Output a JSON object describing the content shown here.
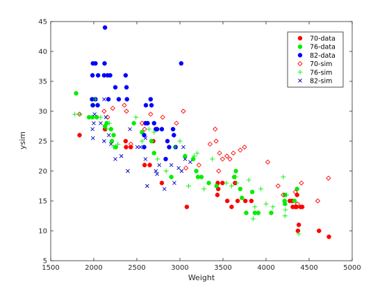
{
  "chart_data": {
    "type": "scatter",
    "xlabel": "Weight",
    "ylabel": "ysim",
    "xlim": [
      1500,
      5000
    ],
    "ylim": [
      5,
      45
    ],
    "xticks": [
      1500,
      2000,
      2500,
      3000,
      3500,
      4000,
      4500,
      5000
    ],
    "yticks": [
      5,
      10,
      15,
      20,
      25,
      30,
      35,
      40,
      45
    ],
    "grid": false,
    "legend_position": "top-right",
    "series": [
      {
        "name": "70-data",
        "marker": "dot",
        "color": "#ff0000",
        "points": [
          [
            1835,
            26
          ],
          [
            2130,
            27
          ],
          [
            2370,
            25
          ],
          [
            2375,
            24
          ],
          [
            2430,
            24
          ],
          [
            2590,
            21
          ],
          [
            2650,
            21
          ],
          [
            2690,
            25
          ],
          [
            2790,
            18
          ],
          [
            3080,
            14
          ],
          [
            3440,
            18
          ],
          [
            3445,
            17
          ],
          [
            3435,
            16
          ],
          [
            3495,
            18
          ],
          [
            3550,
            15
          ],
          [
            3600,
            14
          ],
          [
            3640,
            18
          ],
          [
            3670,
            15
          ],
          [
            3760,
            15
          ],
          [
            3830,
            15
          ],
          [
            4275,
            15
          ],
          [
            4310,
            14
          ],
          [
            4340,
            14
          ],
          [
            4354,
            14
          ],
          [
            4360,
            16
          ],
          [
            4380,
            11
          ],
          [
            4370,
            10
          ],
          [
            4400,
            14
          ],
          [
            4420,
            14
          ],
          [
            4615,
            10
          ],
          [
            4730,
            9
          ],
          [
            4305,
            15
          ]
        ]
      },
      {
        "name": "76-data",
        "marker": "dot",
        "color": "#00ee00",
        "points": [
          [
            1795,
            33
          ],
          [
            1945,
            29
          ],
          [
            1985,
            29
          ],
          [
            2035,
            29
          ],
          [
            2130,
            27.5
          ],
          [
            2150,
            28
          ],
          [
            2200,
            27
          ],
          [
            2230,
            26
          ],
          [
            2210,
            25
          ],
          [
            2255,
            24
          ],
          [
            2465,
            28
          ],
          [
            2560,
            26.5
          ],
          [
            2670,
            25
          ],
          [
            2700,
            23
          ],
          [
            2900,
            19
          ],
          [
            3060,
            22.5
          ],
          [
            3155,
            22
          ],
          [
            3190,
            20
          ],
          [
            3210,
            19
          ],
          [
            3250,
            19
          ],
          [
            3335,
            18
          ],
          [
            3425,
            17.5
          ],
          [
            3650,
            20
          ],
          [
            3630,
            19
          ],
          [
            3700,
            17
          ],
          [
            3720,
            15.5
          ],
          [
            3770,
            13
          ],
          [
            3840,
            16.5
          ],
          [
            3870,
            13
          ],
          [
            3910,
            13
          ],
          [
            4060,
            13
          ],
          [
            4215,
            15
          ],
          [
            4220,
            16
          ],
          [
            4220,
            14.5
          ],
          [
            4330,
            15
          ],
          [
            4360,
            17
          ],
          [
            1985,
            31
          ]
        ]
      },
      {
        "name": "82-data",
        "marker": "dot",
        "color": "#0000ff",
        "points": [
          [
            1990,
            38
          ],
          [
            2020,
            38
          ],
          [
            2125,
            38
          ],
          [
            2130,
            44
          ],
          [
            1985,
            36
          ],
          [
            2050,
            36
          ],
          [
            2120,
            36
          ],
          [
            2160,
            36
          ],
          [
            2190,
            36
          ],
          [
            2370,
            36
          ],
          [
            2380,
            34
          ],
          [
            2250,
            34
          ],
          [
            2290,
            32
          ],
          [
            2170,
            32
          ],
          [
            2020,
            32
          ],
          [
            1980,
            32
          ],
          [
            1990,
            31
          ],
          [
            2045,
            31
          ],
          [
            2385,
            32
          ],
          [
            2660,
            32
          ],
          [
            2670,
            31
          ],
          [
            2605,
            31
          ],
          [
            2720,
            27
          ],
          [
            2790,
            27
          ],
          [
            2600,
            28
          ],
          [
            2625,
            28
          ],
          [
            2585,
            26
          ],
          [
            2585,
            24
          ],
          [
            2700,
            28
          ],
          [
            2735,
            27
          ],
          [
            2920,
            27
          ],
          [
            2930,
            26
          ],
          [
            2855,
            25
          ],
          [
            2875,
            24
          ],
          [
            2835,
            22
          ],
          [
            2950,
            24
          ],
          [
            3015,
            38
          ]
        ]
      },
      {
        "name": "70-sim",
        "marker": "diamond-open",
        "color": "#ff0000",
        "points": [
          [
            1835,
            29.5
          ],
          [
            2120,
            30
          ],
          [
            2160,
            29
          ],
          [
            2220,
            30.5
          ],
          [
            2355,
            31
          ],
          [
            2380,
            30
          ],
          [
            2430,
            24.5
          ],
          [
            2560,
            28
          ],
          [
            2590,
            27
          ],
          [
            2660,
            29.5
          ],
          [
            2800,
            29
          ],
          [
            2960,
            28
          ],
          [
            3040,
            30
          ],
          [
            3070,
            20.5
          ],
          [
            3220,
            21
          ],
          [
            3350,
            24.5
          ],
          [
            3410,
            27
          ],
          [
            3420,
            25
          ],
          [
            3460,
            23
          ],
          [
            3495,
            22
          ],
          [
            3545,
            22.5
          ],
          [
            3580,
            22
          ],
          [
            3620,
            23
          ],
          [
            3700,
            23.5
          ],
          [
            3750,
            24
          ],
          [
            4020,
            21.5
          ],
          [
            4140,
            17.5
          ],
          [
            4200,
            16
          ],
          [
            4340,
            16.5
          ],
          [
            4365,
            14.5
          ],
          [
            4410,
            18
          ],
          [
            4600,
            15
          ],
          [
            4725,
            18.8
          ],
          [
            3450,
            20
          ]
        ]
      },
      {
        "name": "76-sim",
        "marker": "plus",
        "color": "#00ee00",
        "points": [
          [
            1780,
            29.5
          ],
          [
            2020,
            32
          ],
          [
            2080,
            29
          ],
          [
            2150,
            27
          ],
          [
            2180,
            28
          ],
          [
            2230,
            24
          ],
          [
            2280,
            24.5
          ],
          [
            2490,
            29
          ],
          [
            2560,
            25
          ],
          [
            2640,
            27
          ],
          [
            2700,
            26.5
          ],
          [
            2740,
            22
          ],
          [
            2840,
            20
          ],
          [
            2945,
            24
          ],
          [
            3000,
            25
          ],
          [
            3100,
            17.5
          ],
          [
            3165,
            22.5
          ],
          [
            3200,
            23
          ],
          [
            3280,
            17
          ],
          [
            3375,
            22
          ],
          [
            3540,
            18
          ],
          [
            3600,
            17.5
          ],
          [
            3650,
            19
          ],
          [
            3660,
            18
          ],
          [
            3800,
            18.5
          ],
          [
            3850,
            12
          ],
          [
            3870,
            14
          ],
          [
            3940,
            17
          ],
          [
            4000,
            14.5
          ],
          [
            4080,
            14
          ],
          [
            4200,
            19
          ],
          [
            4220,
            12.5
          ],
          [
            4240,
            16
          ],
          [
            4380,
            9.5
          ],
          [
            4225,
            13.5
          ],
          [
            1840,
            29.5
          ]
        ]
      },
      {
        "name": "82-sim",
        "marker": "x",
        "color": "#0000c0",
        "points": [
          [
            1990,
            25.5
          ],
          [
            1985,
            27
          ],
          [
            2000,
            28
          ],
          [
            2010,
            29.5
          ],
          [
            2080,
            28
          ],
          [
            2120,
            32
          ],
          [
            2140,
            29
          ],
          [
            2175,
            26
          ],
          [
            2200,
            24.5
          ],
          [
            2250,
            22
          ],
          [
            2320,
            22.5
          ],
          [
            2395,
            20
          ],
          [
            2420,
            27
          ],
          [
            2505,
            24
          ],
          [
            2540,
            24
          ],
          [
            2600,
            25.5
          ],
          [
            2600,
            22
          ],
          [
            2620,
            17.5
          ],
          [
            2720,
            20
          ],
          [
            2735,
            19.5
          ],
          [
            2760,
            21
          ],
          [
            2820,
            17
          ],
          [
            2900,
            21
          ],
          [
            2985,
            20.5
          ],
          [
            3020,
            20
          ],
          [
            3040,
            24
          ],
          [
            3120,
            21.5
          ],
          [
            3060,
            22
          ],
          [
            2935,
            18
          ],
          [
            2120,
            25
          ]
        ]
      }
    ]
  }
}
